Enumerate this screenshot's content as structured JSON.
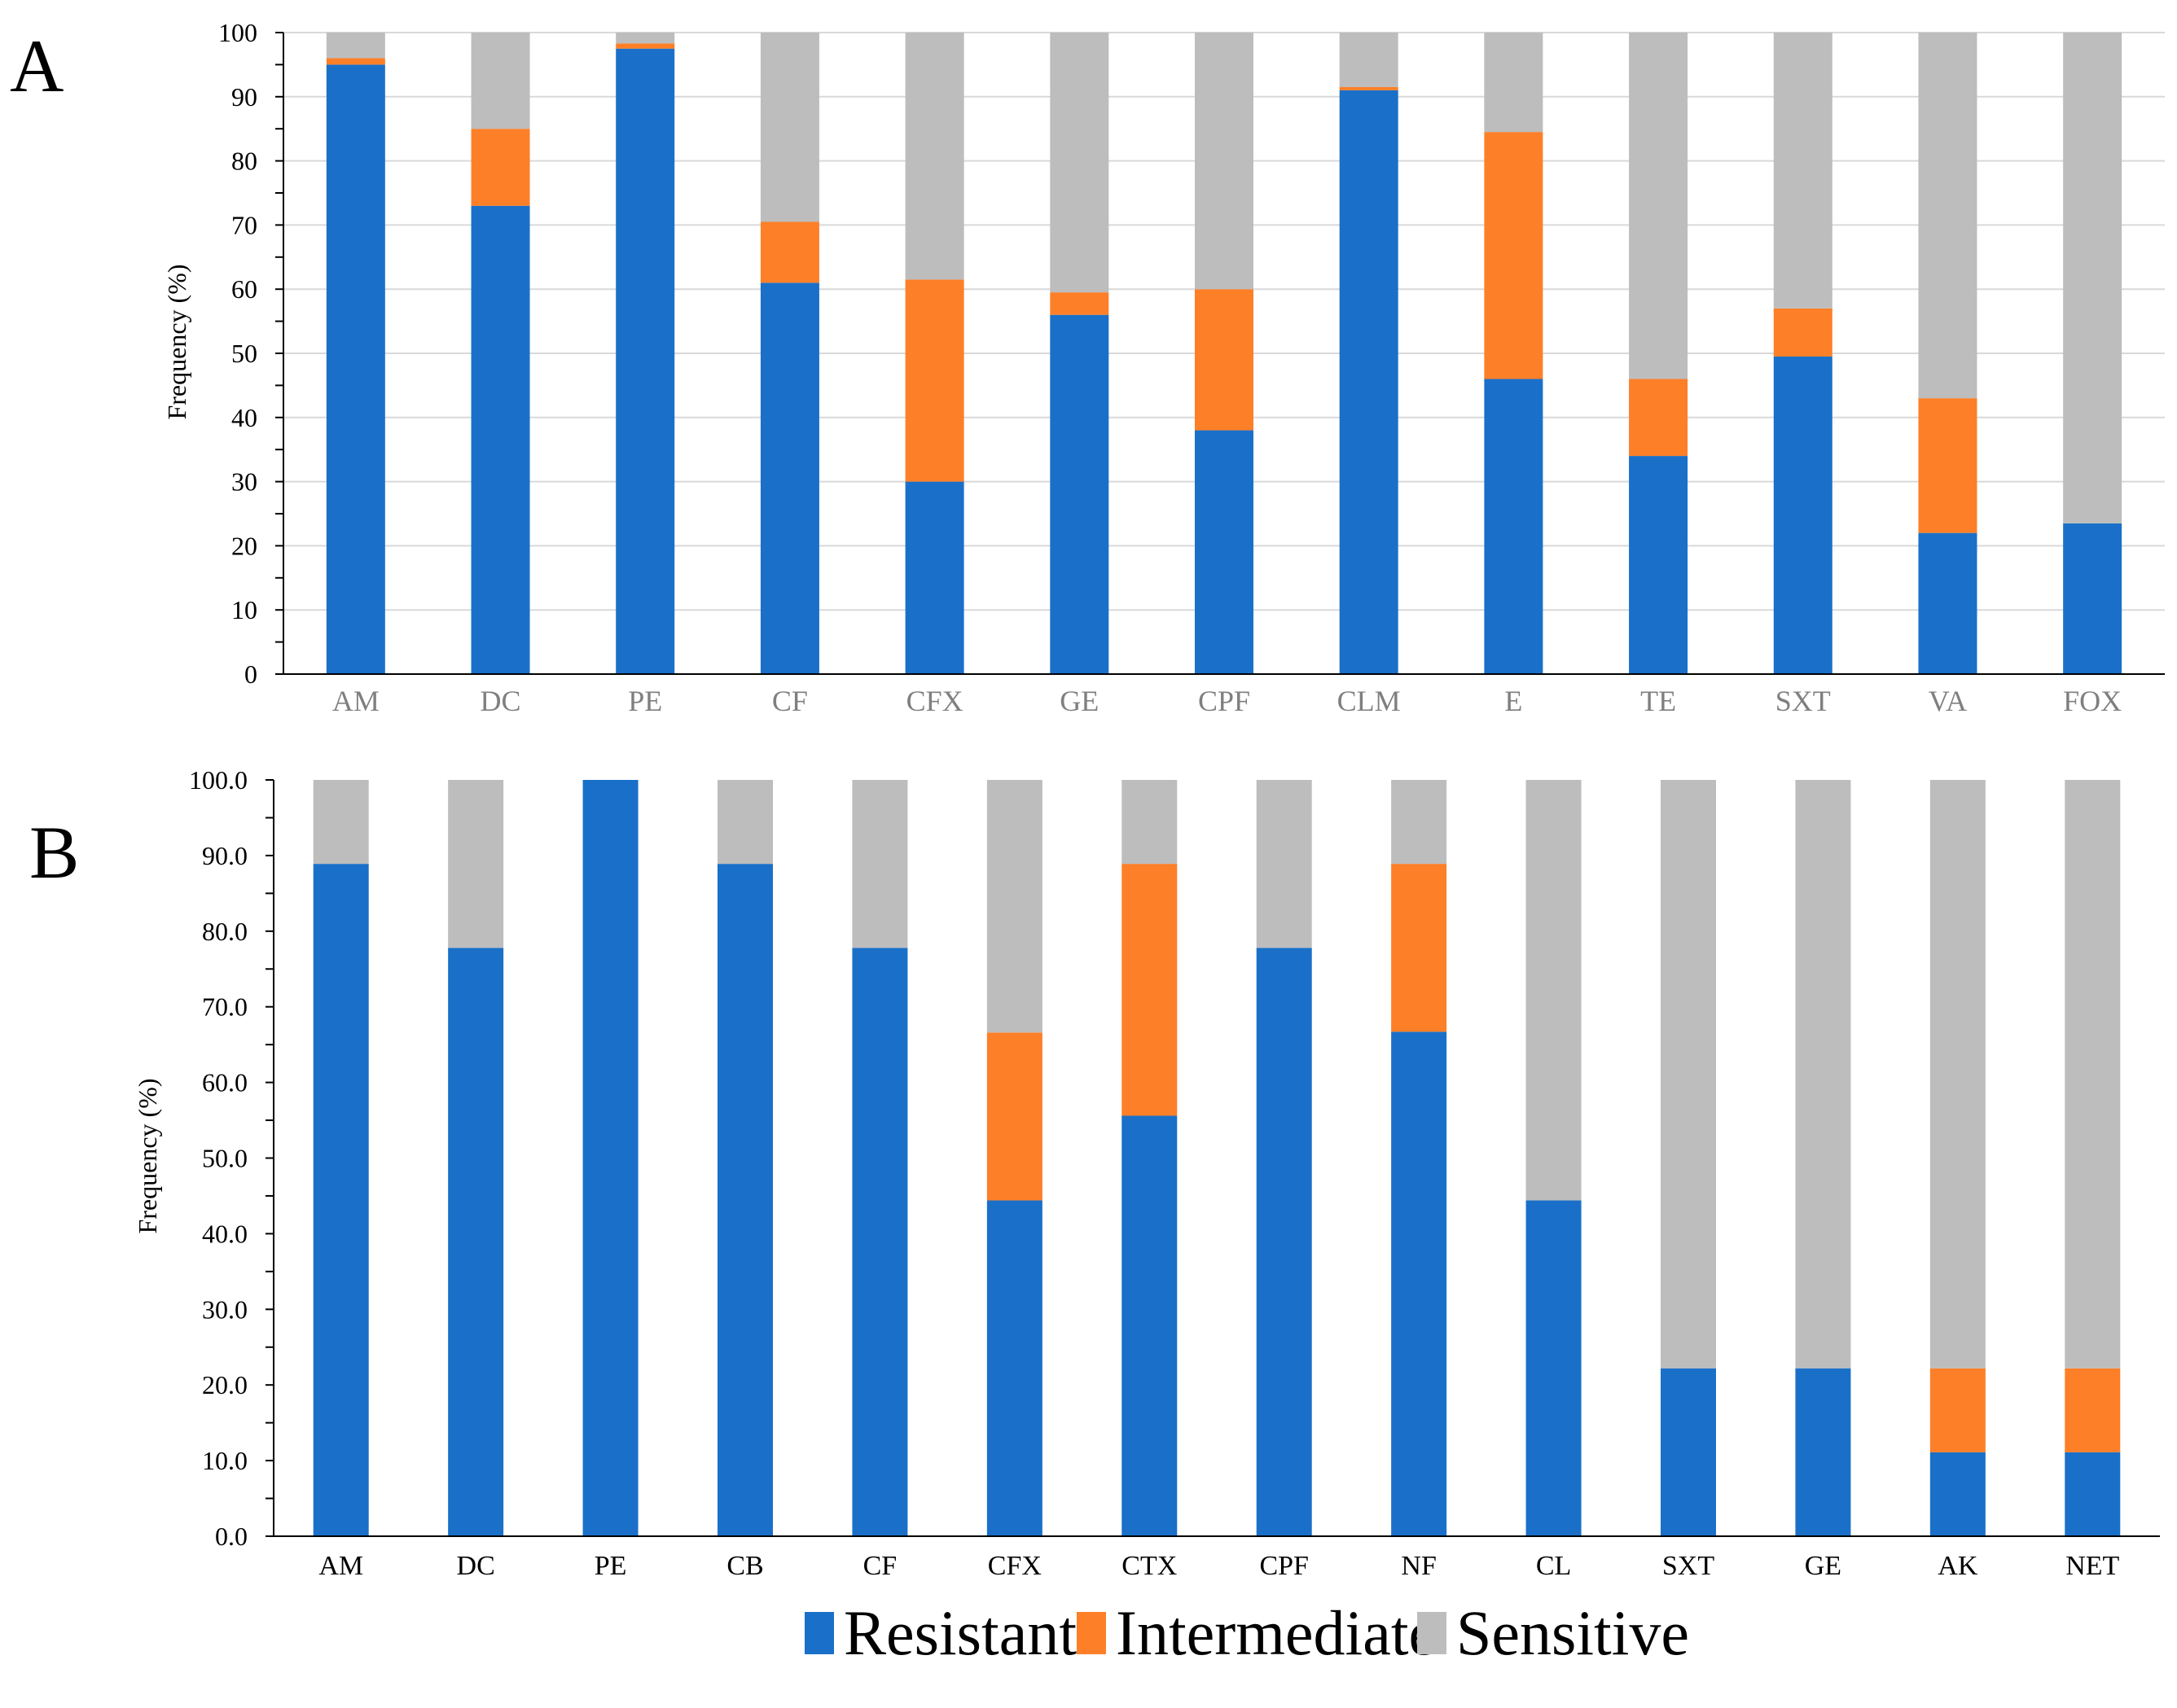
{
  "colors": {
    "resistant": "#1a70c8",
    "intermediate": "#fd7f28",
    "sensitive": "#bdbdbd",
    "grid": "#d9d9d9",
    "axis": "#000000"
  },
  "legend": {
    "items": [
      {
        "label": "Resistant",
        "color_key": "resistant"
      },
      {
        "label": "Intermediate",
        "color_key": "intermediate"
      },
      {
        "label": "Sensitive",
        "color_key": "sensitive"
      }
    ]
  },
  "chart_data": [
    {
      "type": "bar",
      "stacked": true,
      "panel_label": "A",
      "ylabel": "Frequency (%)",
      "xlabel": "",
      "ylim": [
        0,
        100
      ],
      "yticks": [
        "0",
        "10",
        "20",
        "30",
        "40",
        "50",
        "60",
        "70",
        "80",
        "90",
        "100"
      ],
      "grid": true,
      "categories": [
        "AM",
        "DC",
        "PE",
        "CF",
        "CFX",
        "GE",
        "CPF",
        "CLM",
        "E",
        "TE",
        "SXT",
        "VA",
        "FOX"
      ],
      "series": [
        {
          "name": "Resistant",
          "values": [
            95,
            73,
            97.5,
            61,
            30,
            56,
            38,
            91,
            46,
            34,
            49.5,
            22,
            23.5
          ]
        },
        {
          "name": "Intermediate",
          "values": [
            1,
            12,
            0.8,
            9.5,
            31.5,
            3.5,
            22,
            0.5,
            38.5,
            12,
            7.5,
            21,
            0
          ]
        },
        {
          "name": "Sensitive",
          "values": [
            4,
            15,
            1.7,
            29.5,
            38.5,
            40.5,
            40,
            8.5,
            15.5,
            54,
            43,
            57,
            76.5
          ]
        }
      ]
    },
    {
      "type": "bar",
      "stacked": true,
      "panel_label": "B",
      "ylabel": "Frequency (%)",
      "xlabel": "",
      "ylim": [
        0,
        100
      ],
      "yticks": [
        "0.0",
        "10.0",
        "20.0",
        "30.0",
        "40.0",
        "50.0",
        "60.0",
        "70.0",
        "80.0",
        "90.0",
        "100.0"
      ],
      "grid": false,
      "categories": [
        "AM",
        "DC",
        "PE",
        "CB",
        "CF",
        "CFX",
        "CTX",
        "CPF",
        "NF",
        "CL",
        "SXT",
        "GE",
        "AK",
        "NET"
      ],
      "series": [
        {
          "name": "Resistant",
          "values": [
            88.9,
            77.8,
            100,
            88.9,
            77.8,
            44.4,
            55.6,
            77.8,
            66.7,
            44.4,
            22.2,
            22.2,
            11.1,
            11.1
          ]
        },
        {
          "name": "Intermediate",
          "values": [
            0,
            0,
            0,
            0,
            0,
            22.2,
            33.3,
            0,
            22.2,
            0,
            0,
            0,
            11.1,
            11.1
          ]
        },
        {
          "name": "Sensitive",
          "values": [
            11.1,
            22.2,
            0,
            11.1,
            22.2,
            33.4,
            11.1,
            22.2,
            11.1,
            55.6,
            77.8,
            77.8,
            77.8,
            77.8
          ]
        }
      ]
    }
  ]
}
